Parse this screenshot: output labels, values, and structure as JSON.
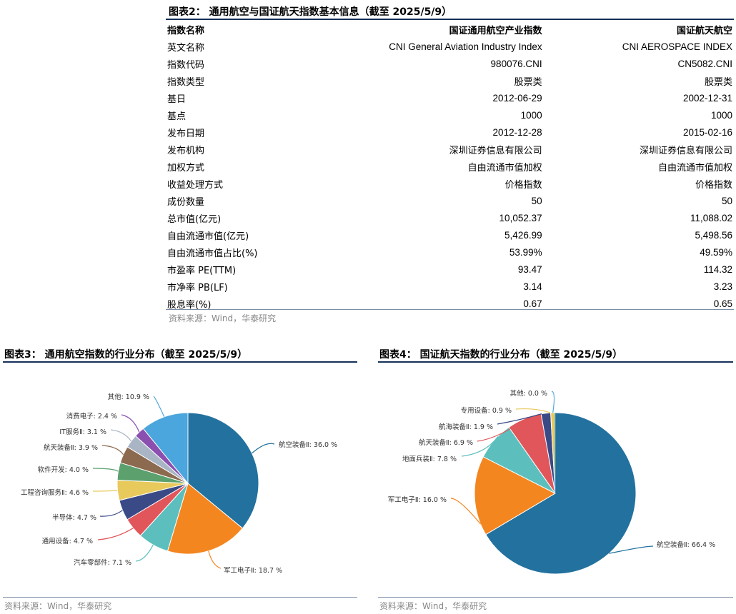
{
  "table": {
    "title": "图表2：  通用航空与国证航天指数基本信息（截至 2025/5/9）",
    "header": [
      "指数名称",
      "国证通用航空产业指数",
      "国证航天航空"
    ],
    "rows": [
      [
        "英文名称",
        "CNI General Aviation Industry Index",
        "CNI AEROSPACE INDEX"
      ],
      [
        "指数代码",
        "980076.CNI",
        "CN5082.CNI"
      ],
      [
        "指数类型",
        "股票类",
        "股票类"
      ],
      [
        "基日",
        "2012-06-29",
        "2002-12-31"
      ],
      [
        "基点",
        "1000",
        "1000"
      ],
      [
        "发布日期",
        "2012-12-28",
        "2015-02-16"
      ],
      [
        "发布机构",
        "深圳证券信息有限公司",
        "深圳证券信息有限公司"
      ],
      [
        "加权方式",
        "自由流通市值加权",
        "自由流通市值加权"
      ],
      [
        "收益处理方式",
        "价格指数",
        "价格指数"
      ],
      [
        "成份数量",
        "50",
        "50"
      ],
      [
        "总市值(亿元)",
        "10,052.37",
        "11,088.02"
      ],
      [
        "自由流通市值(亿元)",
        "5,426.99",
        "5,498.56"
      ],
      [
        "自由流通市值占比(%)",
        "53.99%",
        "49.59%"
      ],
      [
        "市盈率 PE(TTM)",
        "93.47",
        "114.32"
      ],
      [
        "市净率 PB(LF)",
        "3.14",
        "3.23"
      ],
      [
        "股息率(%)",
        "0.67",
        "0.65"
      ]
    ],
    "source": "资料来源：Wind，华泰研究"
  },
  "chart_data": [
    {
      "type": "pie",
      "title": "图表3：  通用航空指数的行业分布（截至 2025/5/9）",
      "categories": [
        "航空装备Ⅱ",
        "军工电子Ⅱ",
        "汽车零部件",
        "通用设备",
        "半导体",
        "工程咨询服务Ⅱ",
        "软件开发",
        "航天装备Ⅱ",
        "IT服务Ⅱ",
        "消费电子",
        "其他"
      ],
      "labels": [
        "航空装备Ⅱ: 36.0 %",
        "军工电子Ⅱ: 18.7 %",
        "汽车零部件: 7.1 %",
        "通用设备: 4.7 %",
        "半导体: 4.7 %",
        "工程咨询服务Ⅱ: 4.6 %",
        "软件开发: 4.0 %",
        "航天装备Ⅱ: 3.9 %",
        "IT服务Ⅱ: 3.1 %",
        "消费电子: 2.4 %",
        "其他: 10.9 %"
      ],
      "values": [
        36.0,
        18.7,
        7.1,
        4.7,
        4.7,
        4.6,
        4.0,
        3.9,
        3.1,
        2.4,
        10.9
      ],
      "colors": [
        "#22719e",
        "#f48620",
        "#5cbfbd",
        "#e0565a",
        "#3a4a86",
        "#e8c95c",
        "#5ca06e",
        "#8c6a4f",
        "#a9b5c4",
        "#8b4fb0",
        "#4aa6dc"
      ],
      "source": "资料来源：Wind，华泰研究"
    },
    {
      "type": "pie",
      "title": "图表4：  国证航天指数的行业分布（截至 2025/5/9）",
      "categories": [
        "航空装备Ⅱ",
        "军工电子Ⅱ",
        "地面兵装Ⅱ",
        "航天装备Ⅱ",
        "航海装备Ⅱ",
        "专用设备",
        "其他"
      ],
      "labels": [
        "航空装备Ⅱ: 66.4 %",
        "军工电子Ⅱ: 16.0 %",
        "地面兵装Ⅱ: 7.8 %",
        "航天装备Ⅱ: 6.9 %",
        "航海装备Ⅱ: 1.9 %",
        "专用设备: 0.9 %",
        "其他: 0.0 %"
      ],
      "values": [
        66.4,
        16.0,
        7.8,
        6.9,
        1.9,
        0.9,
        0.0
      ],
      "colors": [
        "#22719e",
        "#f48620",
        "#5cbfbd",
        "#e0565a",
        "#3a4a86",
        "#e8c95c",
        "#4aa6dc"
      ],
      "source": "资料来源：Wind，华泰研究"
    }
  ]
}
